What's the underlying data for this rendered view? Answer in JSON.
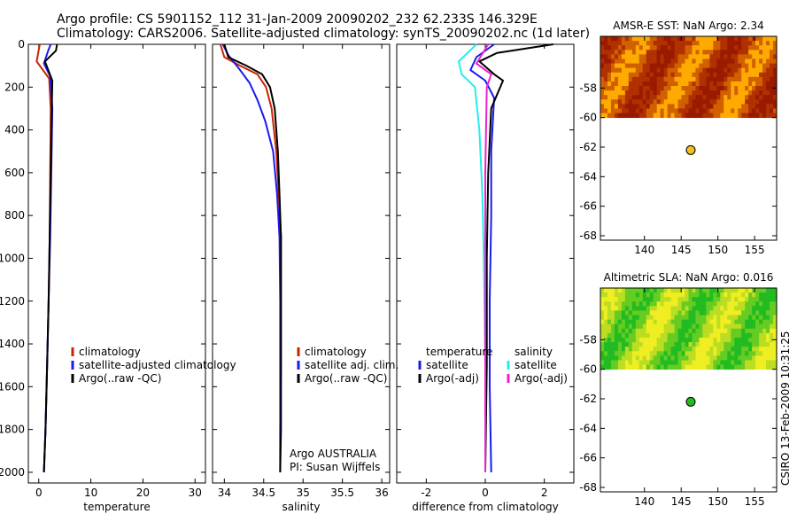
{
  "header": {
    "title_line1": "Argo profile: CS 5901152_112 31-Jan-2009 20090202_232 62.233S 146.329E",
    "title_line2": "Climatology: CARS2006. Satellite-adjusted climatology: synTS_20090202.nc (1d later)"
  },
  "stamp": "CSIRO 13-Feb-2009 10:31:25",
  "colors": {
    "red": "#cc2200",
    "blue": "#1a1aee",
    "black": "#000000",
    "cyan": "#22eeee",
    "magenta": "#ee22cc"
  },
  "chart_data": [
    {
      "type": "line",
      "panel": "temperature",
      "xlabel": "temperature",
      "ylabel": "",
      "xlim": [
        -2,
        32
      ],
      "ylim": [
        2050,
        0
      ],
      "y_reversed": true,
      "xticks": [
        "0",
        "10",
        "20",
        "30"
      ],
      "xtick_values": [
        0,
        10,
        20,
        30
      ],
      "yticks": [
        "0",
        "200",
        "400",
        "600",
        "800",
        "1000",
        "1200",
        "1400",
        "1600",
        "1800",
        "2000"
      ],
      "ytick_values": [
        0,
        200,
        400,
        600,
        800,
        1000,
        1200,
        1400,
        1600,
        1800,
        2000
      ],
      "legend": [
        "climatology",
        "satellite-adjusted climatology",
        "Argo(..raw -QC)"
      ],
      "legend_position": "lower-right",
      "series": [
        {
          "name": "climatology",
          "color": "red",
          "x": [
            0.2,
            -0.4,
            0.8,
            2.0,
            2.3,
            2.2,
            2.1,
            1.9,
            1.6,
            1.3,
            1.0
          ],
          "y": [
            0,
            80,
            120,
            160,
            300,
            600,
            900,
            1200,
            1500,
            1800,
            2000
          ]
        },
        {
          "name": "satellite-adjusted climatology",
          "color": "blue",
          "x": [
            2.3,
            1.8,
            1.0,
            2.2,
            2.6,
            2.4,
            2.2,
            1.9,
            1.6,
            1.3,
            1.0
          ],
          "y": [
            0,
            30,
            90,
            150,
            300,
            600,
            900,
            1200,
            1500,
            1800,
            2000
          ]
        },
        {
          "name": "Argo(..raw -QC)",
          "color": "black",
          "x": [
            3.5,
            3.3,
            1.2,
            2.6,
            2.5,
            2.3,
            2.1,
            1.9,
            1.6,
            1.3,
            1.0
          ],
          "y": [
            0,
            30,
            80,
            170,
            300,
            600,
            900,
            1200,
            1500,
            1800,
            2000
          ]
        }
      ]
    },
    {
      "type": "line",
      "panel": "salinity",
      "xlabel": "salinity",
      "ylabel": "",
      "xlim": [
        33.85,
        36.1
      ],
      "ylim": [
        2050,
        0
      ],
      "y_reversed": true,
      "xticks": [
        "34",
        "34.5",
        "35",
        "35.5",
        "36"
      ],
      "xtick_values": [
        34,
        34.5,
        35,
        35.5,
        36
      ],
      "yticks": [],
      "ytick_values": [
        0,
        200,
        400,
        600,
        800,
        1000,
        1200,
        1400,
        1600,
        1800,
        2000
      ],
      "legend": [
        "climatology",
        "satellite adj. clim.",
        "Argo(..raw -QC)"
      ],
      "legend_position": "lower-right",
      "annotations": [
        "Argo AUSTRALIA",
        "PI: Susan Wijffels"
      ],
      "series": [
        {
          "name": "climatology",
          "color": "red",
          "x": [
            33.95,
            34.0,
            34.2,
            34.42,
            34.53,
            34.6,
            34.66,
            34.69,
            34.72,
            34.72,
            34.72,
            34.71,
            34.71
          ],
          "y": [
            0,
            60,
            100,
            140,
            200,
            300,
            500,
            700,
            900,
            1200,
            1500,
            1800,
            2000
          ]
        },
        {
          "name": "satellite adj. clim.",
          "color": "blue",
          "x": [
            33.98,
            34.05,
            34.2,
            34.32,
            34.42,
            34.52,
            34.62,
            34.67,
            34.7,
            34.71,
            34.71,
            34.71,
            34.71
          ],
          "y": [
            0,
            50,
            120,
            180,
            260,
            360,
            500,
            700,
            900,
            1200,
            1500,
            1800,
            2000
          ]
        },
        {
          "name": "Argo(..raw -QC)",
          "color": "black",
          "x": [
            34.0,
            34.05,
            34.28,
            34.48,
            34.58,
            34.64,
            34.68,
            34.7,
            34.72,
            34.72,
            34.72,
            34.72,
            34.71
          ],
          "y": [
            0,
            60,
            100,
            140,
            200,
            300,
            500,
            700,
            900,
            1200,
            1500,
            1800,
            2000
          ]
        }
      ]
    },
    {
      "type": "line",
      "panel": "difference",
      "xlabel": "difference from climatology",
      "ylabel": "",
      "xlim": [
        -3,
        3
      ],
      "ylim": [
        2050,
        0
      ],
      "y_reversed": true,
      "xticks": [
        "-2",
        "0",
        "2"
      ],
      "xtick_values": [
        -2,
        0,
        2
      ],
      "yticks": [],
      "ytick_values": [
        0,
        200,
        400,
        600,
        800,
        1000,
        1200,
        1400,
        1600,
        1800,
        2000
      ],
      "legend": [
        "temperature",
        "satellite",
        "Argo(-adj)",
        "salinity",
        "satellite",
        "Argo(-adj)"
      ],
      "legend_position": "lower-center",
      "series": [
        {
          "name": "temperature satellite",
          "color": "blue",
          "x": [
            0.3,
            -0.3,
            -0.5,
            0.0,
            0.3,
            0.2,
            0.2,
            0.15,
            0.15,
            0.2
          ],
          "y": [
            0,
            60,
            120,
            170,
            250,
            500,
            800,
            1200,
            1600,
            2000
          ]
        },
        {
          "name": "temperature Argo(-adj)",
          "color": "black",
          "x": [
            2.3,
            0.4,
            -0.2,
            0.3,
            0.6,
            0.2,
            0.1,
            0.05,
            0.05,
            0.0
          ],
          "y": [
            0,
            40,
            80,
            140,
            170,
            300,
            600,
            1000,
            1500,
            2000
          ]
        },
        {
          "name": "salinity satellite",
          "color": "cyan",
          "x": [
            -0.3,
            -0.9,
            -0.8,
            -0.35,
            -0.2,
            -0.1,
            -0.05,
            0.0,
            0.0
          ],
          "y": [
            0,
            80,
            140,
            200,
            400,
            700,
            1000,
            1500,
            2000
          ]
        },
        {
          "name": "salinity Argo(-adj)",
          "color": "magenta",
          "x": [
            0.1,
            -0.3,
            0.2,
            0.05,
            0.0,
            0.0,
            0.0
          ],
          "y": [
            0,
            90,
            140,
            200,
            600,
            1200,
            2000
          ]
        }
      ]
    },
    {
      "type": "heatmap",
      "panel": "sst_map",
      "title": "AMSR-E SST: NaN Argo: 2.34",
      "xlim": [
        134,
        158
      ],
      "ylim": [
        -68.3,
        -54.5
      ],
      "xticks": [
        "140",
        "145",
        "150",
        "155"
      ],
      "xtick_values": [
        140,
        145,
        150,
        155
      ],
      "yticks": [
        "-58",
        "-60",
        "-62",
        "-64",
        "-66",
        "-68"
      ],
      "ytick_values": [
        -58,
        -60,
        -62,
        -64,
        -66,
        -68
      ],
      "data_extent_lat": [
        -60,
        -54.5
      ],
      "point": {
        "lon": 146.3,
        "lat": -62.2,
        "color": "#f0c020"
      },
      "palette": [
        "#ffaa00",
        "#d06000",
        "#b03000",
        "#9a1a00"
      ]
    },
    {
      "type": "heatmap",
      "panel": "sla_map",
      "title": "Altimetric SLA: NaN Argo: 0.016",
      "xlim": [
        134,
        158
      ],
      "ylim": [
        -68.3,
        -54.5
      ],
      "xticks": [
        "140",
        "145",
        "150",
        "155"
      ],
      "xtick_values": [
        140,
        145,
        150,
        155
      ],
      "yticks": [
        "-58",
        "-60",
        "-62",
        "-64",
        "-66",
        "-68"
      ],
      "ytick_values": [
        -58,
        -60,
        -62,
        -64,
        -66,
        -68
      ],
      "data_extent_lat": [
        -60,
        -54.5
      ],
      "point": {
        "lon": 146.3,
        "lat": -62.2,
        "color": "#22bb22"
      },
      "palette": [
        "#22bb22",
        "#66cc22",
        "#bbdd22",
        "#eeee22"
      ]
    }
  ]
}
